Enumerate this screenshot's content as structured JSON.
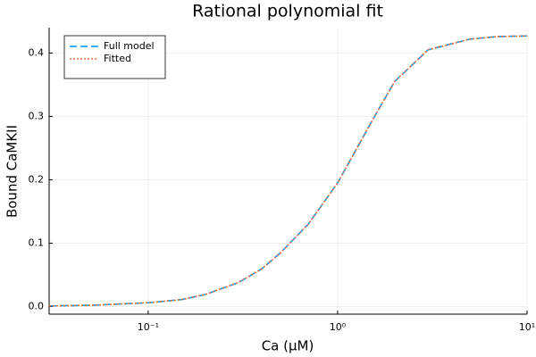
{
  "chart_data": {
    "type": "line",
    "title": "Rational polynomial fit",
    "x_label": "Ca (μM)",
    "y_label": "Bound CaMKII",
    "x": [
      0.03,
      0.05,
      0.1,
      0.15,
      0.2,
      0.3,
      0.4,
      0.5,
      0.7,
      1,
      1.5,
      2,
      3,
      5,
      7,
      10
    ],
    "series": [
      {
        "name": "Full model",
        "color": "#009af9",
        "style": "dashed",
        "values": [
          0.001,
          0.002,
          0.006,
          0.011,
          0.019,
          0.038,
          0.06,
          0.085,
          0.13,
          0.195,
          0.29,
          0.355,
          0.405,
          0.422,
          0.426,
          0.427
        ]
      },
      {
        "name": "Fitted",
        "color": "#e26f46",
        "style": "dotted",
        "values": [
          0.001,
          0.002,
          0.006,
          0.011,
          0.019,
          0.038,
          0.06,
          0.085,
          0.13,
          0.195,
          0.29,
          0.355,
          0.405,
          0.422,
          0.426,
          0.427
        ]
      }
    ],
    "xlog": true,
    "xlim": [
      0.03,
      10
    ],
    "xticks": [
      {
        "value": 0.1,
        "label": "10⁻¹"
      },
      {
        "value": 1,
        "label": "10⁰"
      },
      {
        "value": 10,
        "label": "10¹"
      }
    ],
    "ylim": [
      -0.012,
      0.44
    ],
    "yticks": [
      {
        "value": 0,
        "label": "0.0"
      },
      0.1,
      0.2,
      0.3,
      0.4
    ],
    "grid": true,
    "legend": "top-left"
  }
}
